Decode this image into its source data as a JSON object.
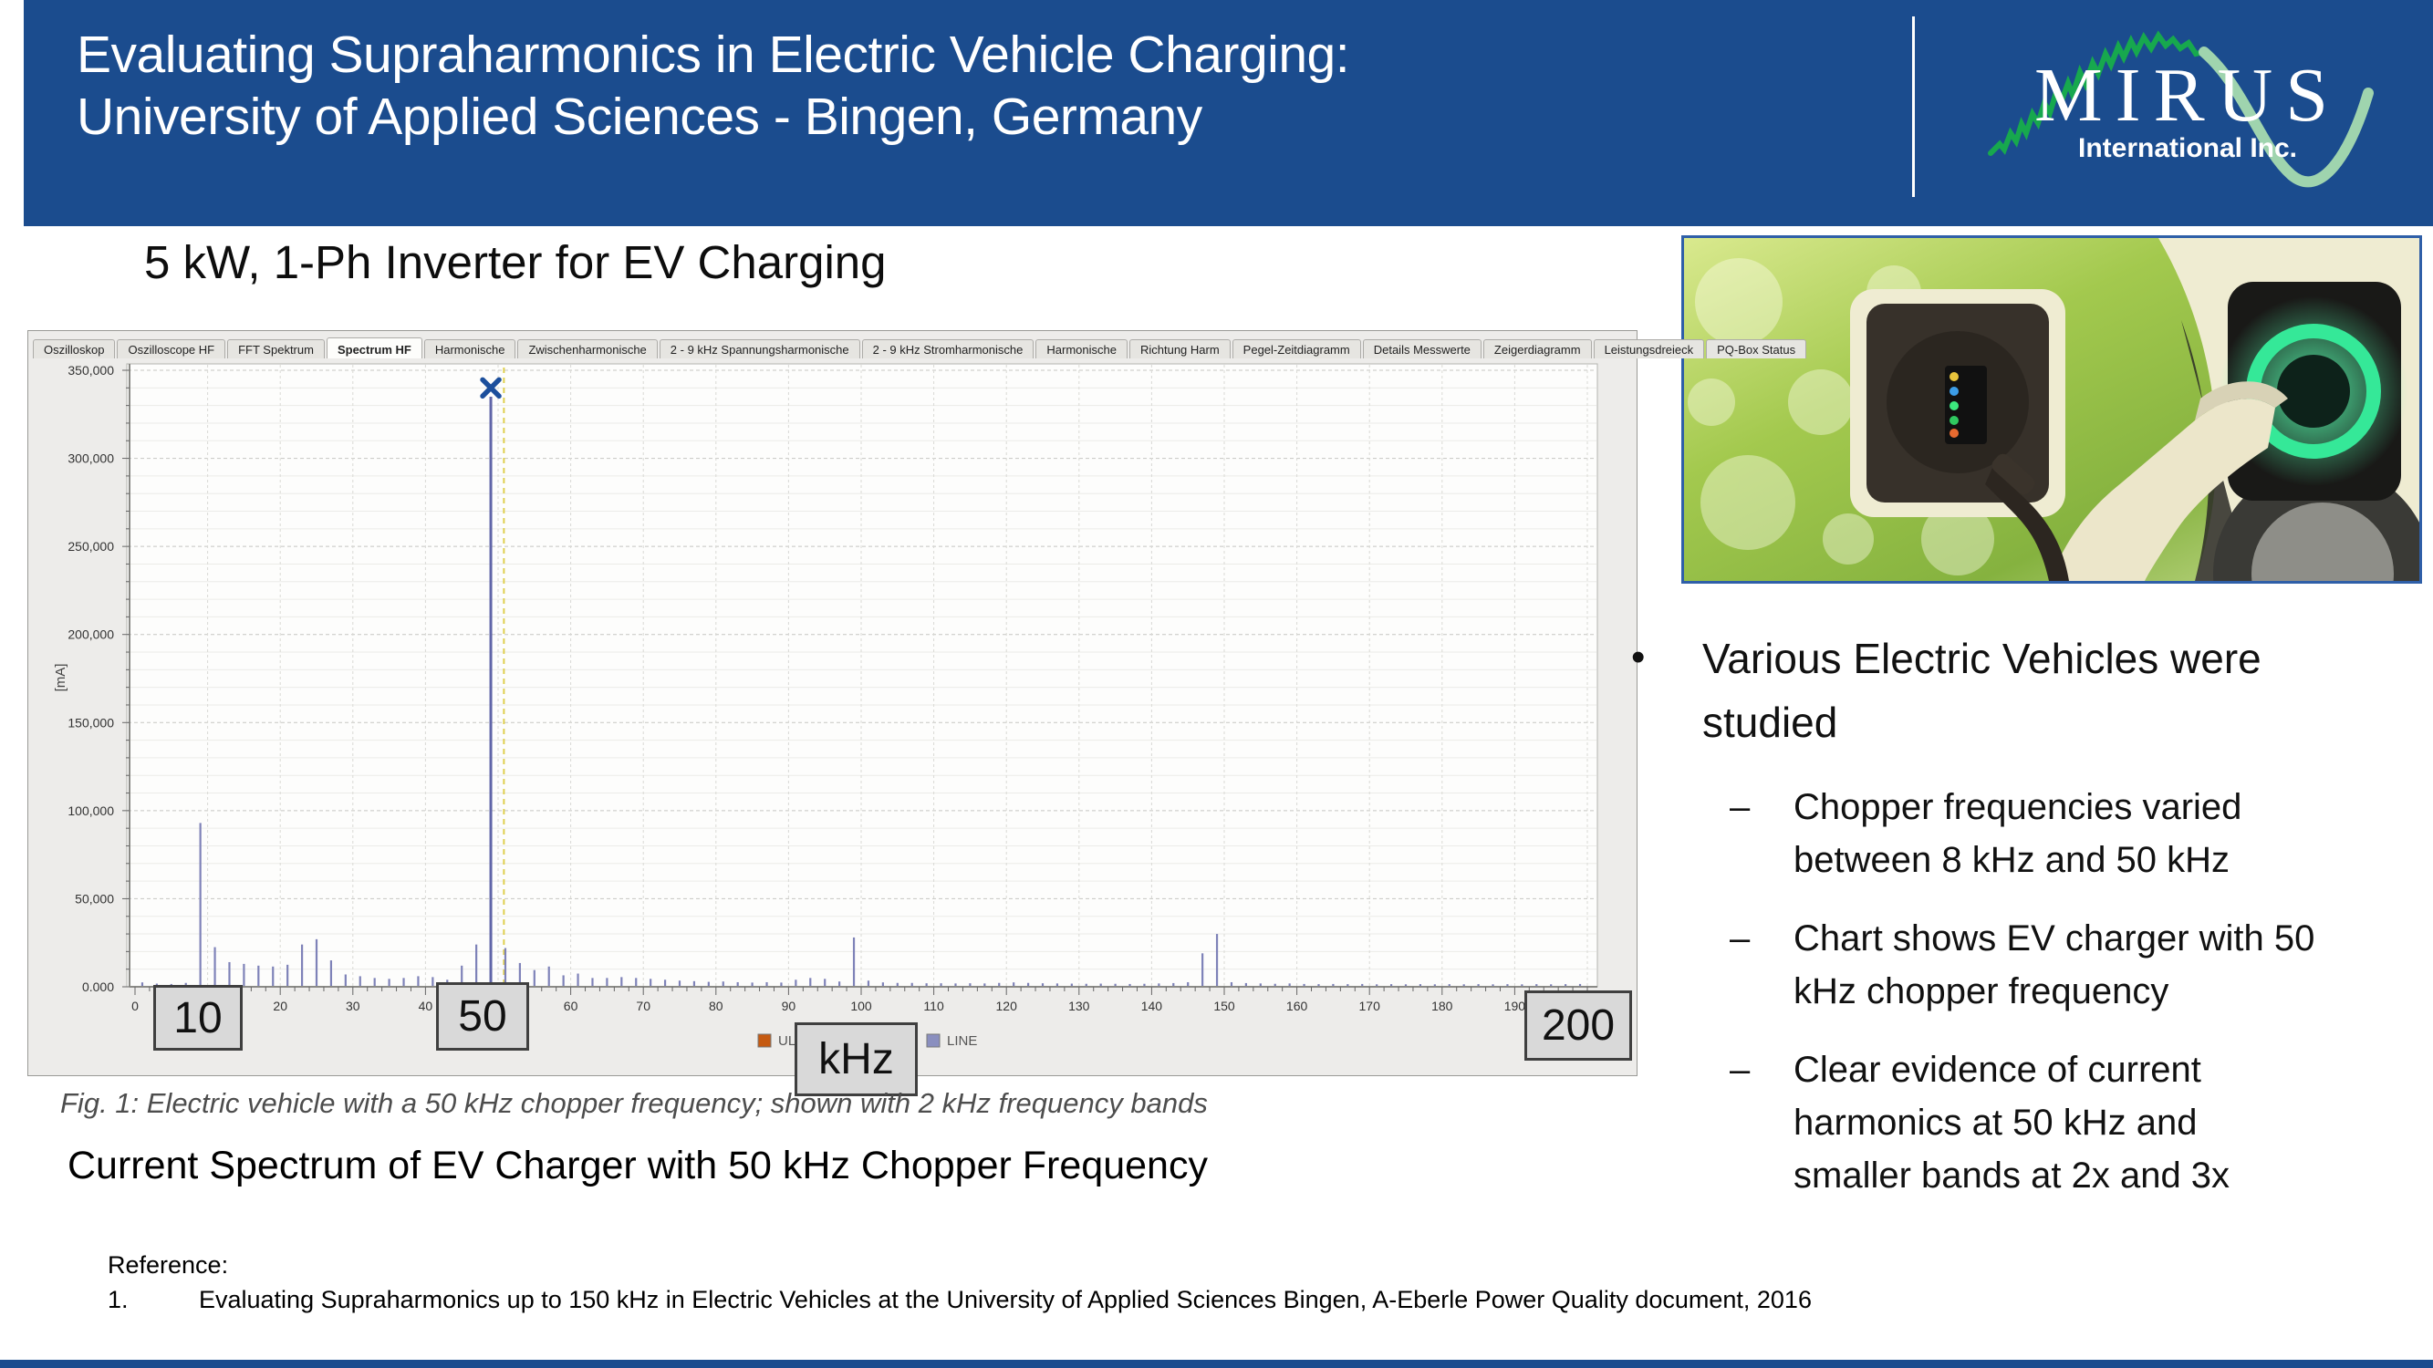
{
  "colors": {
    "header_blue": "#1b4c8e",
    "panel_bg": "#edecea",
    "spectrum_line": "#7e82b8",
    "spectrum_peak": "#6065a8",
    "cursor_yellow": "#dfcf4e",
    "marker_blue": "#1c4f9c",
    "callout_bg": "#d9d9d9",
    "logo_green_dark": "#17a84e",
    "logo_green_light": "#9fd4ae"
  },
  "header": {
    "title_line1": "Evaluating Supraharmonics in Electric Vehicle Charging:",
    "title_line2": "University of Applied Sciences - Bingen, Germany",
    "logo_text": "MIRUS",
    "logo_subtext": "International Inc."
  },
  "subtitle": "5 kW, 1-Ph Inverter for EV Charging",
  "bullets": {
    "main": "Various Electric Vehicles were studied",
    "subs": [
      "Chopper frequencies varied between 8 kHz and 50 kHz",
      "Chart shows EV charger with 50 kHz chopper frequency",
      "Clear evidence of current harmonics at 50 kHz and smaller bands at 2x and 3x"
    ]
  },
  "figure_caption": "Fig. 1: Electric vehicle with a 50 kHz chopper frequency; shown with 2 kHz frequency bands",
  "spectrum_title": "Current Spectrum of EV Charger with 50 kHz Chopper Frequency",
  "reference": {
    "label": "Reference:",
    "items": [
      {
        "num": "1.",
        "text": "Evaluating Supraharmonics up to 150 kHz in Electric Vehicles at the University of Applied Sciences Bingen, A-Eberle Power Quality document, 2016"
      }
    ]
  },
  "chart_app": {
    "tabs": [
      "Oszilloskop",
      "Oszilloscope HF",
      "FFT Spektrum",
      "Spectrum HF",
      "Harmonische",
      "Zwischenharmonische",
      "2 - 9 kHz Spannungsharmonische",
      "2 - 9 kHz Stromharmonische",
      "Harmonische",
      "Richtung Harm",
      "Pegel-Zeitdiagramm",
      "Details Messwerte",
      "Zeigerdiagramm",
      "Leistungsdreieck",
      "PQ-Box Status"
    ],
    "active_tab": "Spectrum HF",
    "y_axis_unit": "[mA]",
    "y_tick_labels": [
      "0.000",
      "50,000",
      "100,000",
      "150,000",
      "200,000",
      "250,000",
      "300,000",
      "350,000"
    ],
    "x_tick_labels": [
      "0",
      "10",
      "20",
      "30",
      "40",
      "50",
      "60",
      "70",
      "80",
      "90",
      "100",
      "110",
      "120",
      "130",
      "140",
      "150",
      "160",
      "170",
      "180",
      "190",
      "200"
    ],
    "legend": [
      {
        "label": "UL1",
        "color": "#c55a11"
      },
      {
        "label": "LINE",
        "color": "#8a8fbf"
      }
    ],
    "callouts": [
      "10",
      "50",
      "kHz",
      "200"
    ]
  },
  "chart_data": {
    "type": "bar",
    "title": "Spectrum HF",
    "xlabel": "kHz",
    "ylabel": "[mA]",
    "xlim": [
      0,
      200
    ],
    "ylim": [
      0,
      350000
    ],
    "grid": true,
    "x": [
      1,
      3,
      5,
      7,
      9,
      11,
      13,
      15,
      17,
      19,
      21,
      23,
      25,
      27,
      29,
      31,
      33,
      35,
      37,
      39,
      41,
      43,
      45,
      47,
      49,
      51,
      53,
      55,
      57,
      59,
      61,
      63,
      65,
      67,
      69,
      71,
      73,
      75,
      77,
      79,
      81,
      83,
      85,
      87,
      89,
      91,
      93,
      95,
      97,
      99,
      101,
      103,
      105,
      107,
      109,
      111,
      113,
      115,
      117,
      119,
      121,
      123,
      125,
      127,
      129,
      131,
      133,
      135,
      137,
      139,
      141,
      143,
      145,
      147,
      149,
      151,
      153,
      155,
      157,
      159,
      161,
      163,
      165,
      167,
      169,
      171,
      173,
      175,
      177,
      179,
      181,
      183,
      185,
      187,
      189,
      191,
      193,
      195,
      197,
      199
    ],
    "values": [
      2500,
      1800,
      1600,
      2200,
      93000,
      22500,
      14000,
      13000,
      12000,
      11500,
      12500,
      24000,
      27000,
      15000,
      7000,
      6000,
      5000,
      4500,
      5000,
      6000,
      5500,
      4000,
      12000,
      24000,
      335000,
      22000,
      13500,
      9500,
      11500,
      6500,
      7500,
      5000,
      5000,
      5500,
      5000,
      4500,
      4000,
      3500,
      3200,
      2800,
      3000,
      2600,
      2400,
      2600,
      2400,
      4000,
      5000,
      4500,
      3000,
      28000,
      3500,
      2500,
      2200,
      2200,
      2000,
      2000,
      1900,
      2000,
      1900,
      2200,
      2500,
      2200,
      2000,
      1900,
      1800,
      1700,
      1800,
      1700,
      1600,
      1700,
      1900,
      2100,
      2600,
      19000,
      30000,
      2600,
      2100,
      1900,
      1700,
      1900,
      1600,
      1500,
      1600,
      1500,
      1600,
      1400,
      1500,
      1400,
      1500,
      1400,
      1500,
      1400,
      1500,
      1400,
      1500,
      1400,
      1500,
      1400,
      1500,
      1600
    ],
    "marker": {
      "x": 49,
      "y": 340000
    },
    "cursor_x": 50.8,
    "annotations": [
      "10 kHz",
      "50 kHz",
      "kHz axis unit",
      "200 kHz"
    ]
  }
}
